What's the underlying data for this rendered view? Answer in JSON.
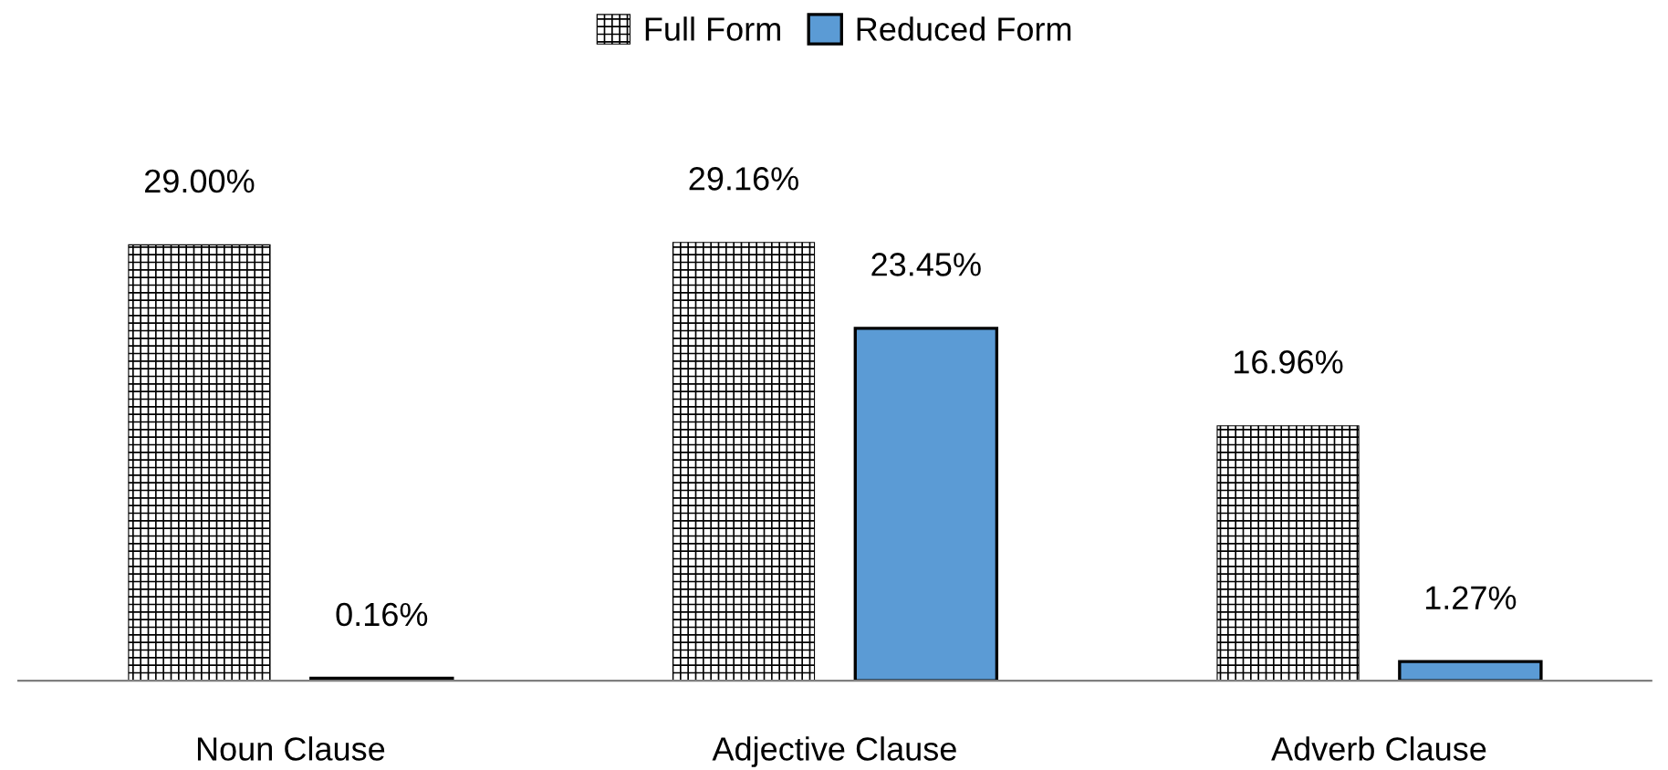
{
  "chart_data": {
    "type": "bar",
    "categories": [
      "Noun Clause",
      "Adjective Clause",
      "Adverb Clause"
    ],
    "series": [
      {
        "name": "Full Form",
        "color": "#000000",
        "values": [
          29.0,
          29.16,
          16.96
        ],
        "value_labels": [
          "29.00%",
          "29.16%",
          "16.96%"
        ]
      },
      {
        "name": "Reduced Form",
        "color": "#5b9bd5",
        "values": [
          0.16,
          23.45,
          1.27
        ],
        "value_labels": [
          "0.16%",
          "23.45%",
          "1.27%"
        ]
      }
    ],
    "legend": "top",
    "grid": false
  }
}
